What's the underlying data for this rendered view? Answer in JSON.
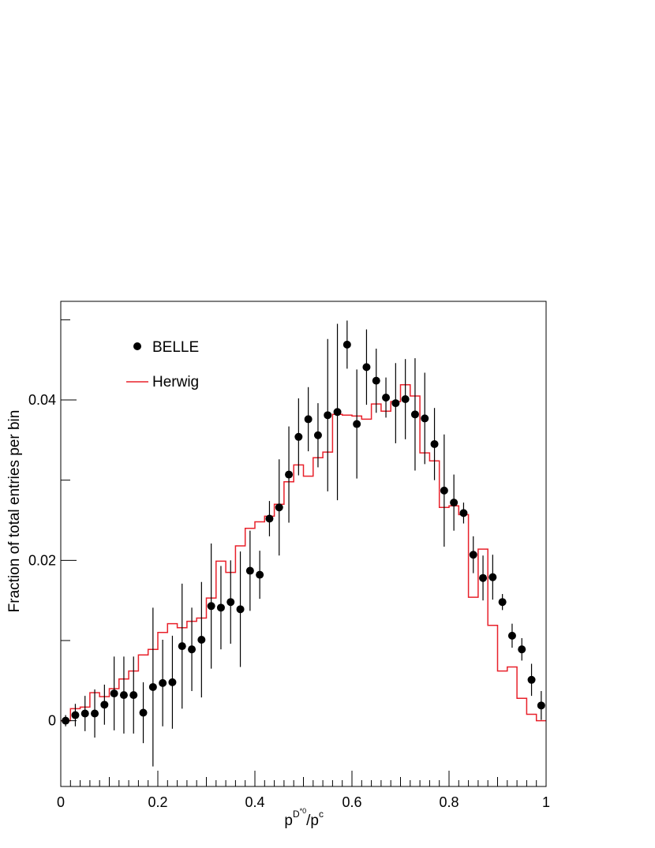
{
  "chart_data": {
    "type": "scatter",
    "title": "",
    "xlabel": {
      "base1": "p",
      "sup1": "D",
      "sup1b": "*0",
      "slash": "/p",
      "sup2": "c"
    },
    "ylabel": "Fraction of total entries per bin",
    "xlim": [
      0,
      1
    ],
    "ylim": [
      -0.0082,
      0.0523
    ],
    "x_ticks": [
      {
        "value": 0,
        "label": "0"
      },
      {
        "value": 0.2,
        "label": "0.2"
      },
      {
        "value": 0.4,
        "label": "0.4"
      },
      {
        "value": 0.6,
        "label": "0.6"
      },
      {
        "value": 0.8,
        "label": "0.8"
      },
      {
        "value": 1,
        "label": "1"
      }
    ],
    "y_ticks": [
      {
        "value": 0,
        "label": "0"
      },
      {
        "value": 0.02,
        "label": "0.02"
      },
      {
        "value": 0.04,
        "label": "0.04"
      }
    ],
    "grid": false,
    "legend": {
      "position": "top-left",
      "entries": [
        {
          "label": "BELLE",
          "marker": "circle",
          "color": "#000000"
        },
        {
          "label": "Herwig",
          "marker": "line",
          "color": "#e8202a"
        }
      ]
    },
    "series": [
      {
        "name": "BELLE",
        "kind": "points-with-errors",
        "color": "#000000",
        "x": [
          0.01,
          0.03,
          0.05,
          0.07,
          0.09,
          0.11,
          0.13,
          0.15,
          0.17,
          0.19,
          0.21,
          0.23,
          0.25,
          0.27,
          0.29,
          0.31,
          0.33,
          0.35,
          0.37,
          0.39,
          0.41,
          0.43,
          0.45,
          0.47,
          0.49,
          0.51,
          0.53,
          0.55,
          0.57,
          0.59,
          0.61,
          0.63,
          0.65,
          0.67,
          0.69,
          0.71,
          0.73,
          0.75,
          0.77,
          0.79,
          0.81,
          0.83,
          0.85,
          0.87,
          0.89,
          0.91,
          0.93,
          0.95,
          0.97,
          0.99
        ],
        "y": [
          0.0,
          0.0007,
          0.0009,
          0.0009,
          0.002,
          0.0034,
          0.0032,
          0.0032,
          0.001,
          0.0042,
          0.0047,
          0.0048,
          0.0093,
          0.0089,
          0.0101,
          0.0143,
          0.0141,
          0.0148,
          0.0139,
          0.0187,
          0.0182,
          0.0252,
          0.0266,
          0.0307,
          0.0354,
          0.0376,
          0.0356,
          0.0381,
          0.0385,
          0.0469,
          0.037,
          0.0441,
          0.0424,
          0.0403,
          0.0396,
          0.0401,
          0.0382,
          0.0377,
          0.0345,
          0.0287,
          0.0272,
          0.0259,
          0.0207,
          0.0178,
          0.0179,
          0.0148,
          0.0106,
          0.0089,
          0.0051,
          0.0019
        ],
        "err": [
          0.0007,
          0.0014,
          0.0022,
          0.003,
          0.0025,
          0.0046,
          0.0048,
          0.0048,
          0.0038,
          0.0099,
          0.0054,
          0.0058,
          0.0078,
          0.0052,
          0.0072,
          0.0078,
          0.0052,
          0.0052,
          0.0072,
          0.005,
          0.003,
          0.0022,
          0.006,
          0.006,
          0.0048,
          0.004,
          0.004,
          0.0095,
          0.011,
          0.003,
          0.0068,
          0.0047,
          0.004,
          0.0025,
          0.005,
          0.005,
          0.007,
          0.0057,
          0.0045,
          0.007,
          0.0035,
          0.0013,
          0.0023,
          0.0028,
          0.0028,
          0.001,
          0.0015,
          0.0014,
          0.002,
          0.0018
        ]
      },
      {
        "name": "Herwig",
        "kind": "step-histogram",
        "color": "#e8202a",
        "bin_edges": [
          0,
          0.02,
          0.04,
          0.06,
          0.08,
          0.1,
          0.12,
          0.14,
          0.16,
          0.18,
          0.2,
          0.22,
          0.24,
          0.26,
          0.28,
          0.3,
          0.32,
          0.34,
          0.36,
          0.38,
          0.4,
          0.42,
          0.44,
          0.46,
          0.48,
          0.5,
          0.52,
          0.54,
          0.56,
          0.58,
          0.6,
          0.62,
          0.64,
          0.66,
          0.68,
          0.7,
          0.72,
          0.74,
          0.76,
          0.78,
          0.8,
          0.82,
          0.84,
          0.86,
          0.88,
          0.9,
          0.92,
          0.94,
          0.96,
          0.98,
          1.0
        ],
        "values": [
          0.0,
          0.0015,
          0.0017,
          0.0035,
          0.003,
          0.004,
          0.0052,
          0.0062,
          0.0082,
          0.0089,
          0.011,
          0.0121,
          0.0116,
          0.0124,
          0.0128,
          0.0153,
          0.0199,
          0.0185,
          0.0218,
          0.024,
          0.0248,
          0.0255,
          0.027,
          0.0298,
          0.0319,
          0.0305,
          0.0328,
          0.0335,
          0.0382,
          0.0381,
          0.038,
          0.0376,
          0.0395,
          0.0386,
          0.0398,
          0.0419,
          0.0405,
          0.0334,
          0.0324,
          0.0266,
          0.0268,
          0.0257,
          0.0154,
          0.0214,
          0.0119,
          0.0062,
          0.0067,
          0.0028,
          0.0008,
          0.0
        ]
      }
    ]
  }
}
